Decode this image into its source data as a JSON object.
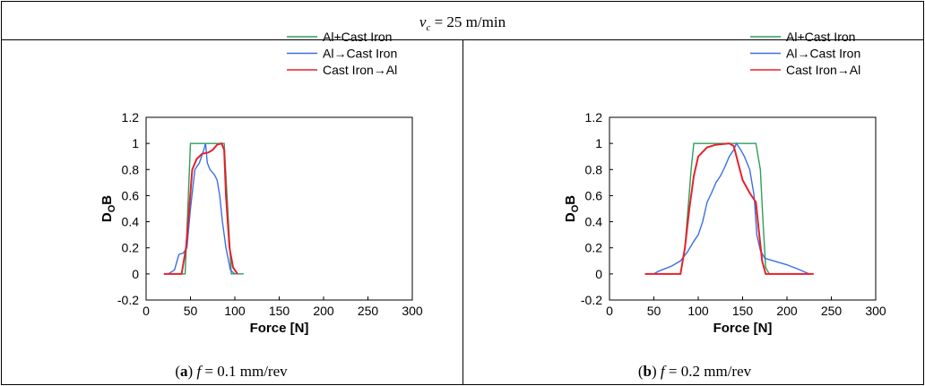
{
  "header": {
    "parts": [
      "v",
      "c",
      " = 25 m/min"
    ]
  },
  "chart_data": [
    {
      "type": "line",
      "caption": [
        "(",
        "a",
        ") ",
        "f",
        " = 0.1 mm/rev"
      ],
      "x_label": "Force [N]",
      "y_label": [
        "D",
        "O",
        "B"
      ],
      "xlim": [
        0,
        300
      ],
      "xticks": [
        0,
        50,
        100,
        150,
        200,
        250,
        300
      ],
      "ylim": [
        -0.2,
        1.2
      ],
      "yticks": [
        -0.2,
        0,
        0.2,
        0.4,
        0.6,
        0.8,
        1,
        1.2
      ],
      "legend": "top-right",
      "series": [
        {
          "name": "Al+Cast Iron",
          "color": "#2e9e5b",
          "x": [
            20,
            44,
            47,
            50,
            88,
            92,
            96,
            110
          ],
          "values": [
            0,
            0,
            0.5,
            1,
            1,
            0.5,
            0,
            0
          ]
        },
        {
          "name": "Al→Cast Iron",
          "color": "#3b6fe6",
          "x": [
            25,
            32,
            37,
            42,
            46,
            50,
            55,
            60,
            65,
            67,
            69,
            72,
            77,
            80,
            83,
            86,
            90,
            95,
            100
          ],
          "values": [
            0,
            0.03,
            0.15,
            0.16,
            0.2,
            0.5,
            0.8,
            0.85,
            0.95,
            1,
            0.85,
            0.8,
            0.76,
            0.72,
            0.6,
            0.4,
            0.2,
            0.03,
            0
          ]
        },
        {
          "name": "Cast Iron→Al",
          "color": "#e5222b",
          "x": [
            20,
            40,
            45,
            48,
            52,
            57,
            63,
            70,
            75,
            80,
            85,
            88,
            90,
            94,
            98,
            103
          ],
          "values": [
            0,
            0,
            0.2,
            0.45,
            0.8,
            0.88,
            0.92,
            0.93,
            0.95,
            0.99,
            1,
            0.95,
            0.6,
            0.2,
            0.05,
            0
          ]
        }
      ]
    },
    {
      "type": "line",
      "caption": [
        "(",
        "b",
        ") ",
        "f",
        " = 0.2 mm/rev"
      ],
      "x_label": "Force [N]",
      "y_label": [
        "D",
        "O",
        "B"
      ],
      "xlim": [
        0,
        300
      ],
      "xticks": [
        0,
        50,
        100,
        150,
        200,
        250,
        300
      ],
      "ylim": [
        -0.2,
        1.2
      ],
      "yticks": [
        -0.2,
        0,
        0.2,
        0.4,
        0.6,
        0.8,
        1,
        1.2
      ],
      "legend": "top-right",
      "series": [
        {
          "name": "Al+Cast Iron",
          "color": "#2e9e5b",
          "x": [
            40,
            80,
            85,
            92,
            95,
            165,
            170,
            173,
            176,
            180,
            230
          ],
          "values": [
            0,
            0,
            0.2,
            0.8,
            1,
            1,
            0.8,
            0.4,
            0.05,
            0,
            0
          ]
        },
        {
          "name": "Al→Cast Iron",
          "color": "#3b6fe6",
          "x": [
            50,
            55,
            70,
            80,
            88,
            95,
            100,
            105,
            110,
            115,
            120,
            125,
            130,
            135,
            140,
            143,
            148,
            152,
            158,
            163,
            166,
            170,
            175,
            185,
            200,
            215,
            225
          ],
          "values": [
            0,
            0.02,
            0.06,
            0.1,
            0.17,
            0.25,
            0.3,
            0.4,
            0.55,
            0.62,
            0.7,
            0.75,
            0.82,
            0.9,
            0.95,
            1,
            0.95,
            0.9,
            0.8,
            0.6,
            0.3,
            0.18,
            0.12,
            0.1,
            0.07,
            0.03,
            0
          ]
        },
        {
          "name": "Cast Iron→Al",
          "color": "#e5222b",
          "x": [
            40,
            80,
            85,
            90,
            95,
            100,
            110,
            120,
            135,
            140,
            145,
            150,
            158,
            165,
            168,
            172,
            176,
            230
          ],
          "values": [
            0,
            0,
            0.2,
            0.5,
            0.75,
            0.9,
            0.97,
            0.99,
            1,
            0.98,
            0.85,
            0.72,
            0.62,
            0.55,
            0.35,
            0.1,
            0,
            0
          ]
        }
      ]
    }
  ]
}
